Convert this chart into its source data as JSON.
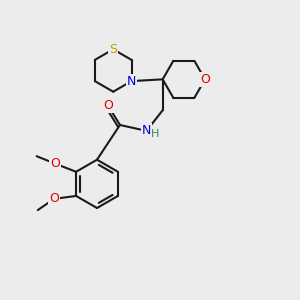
{
  "bg_color": "#ececec",
  "line_color": "#1a1a1a",
  "line_width": 1.5,
  "atom_colors": {
    "S": "#b8a000",
    "N": "#0000e0",
    "O": "#dd0000",
    "H": "#2e8b57",
    "C": "#1a1a1a"
  },
  "font_size": 9,
  "figsize": [
    3.0,
    3.0
  ],
  "dpi": 100,
  "xlim": [
    0,
    10
  ],
  "ylim": [
    0,
    10
  ]
}
